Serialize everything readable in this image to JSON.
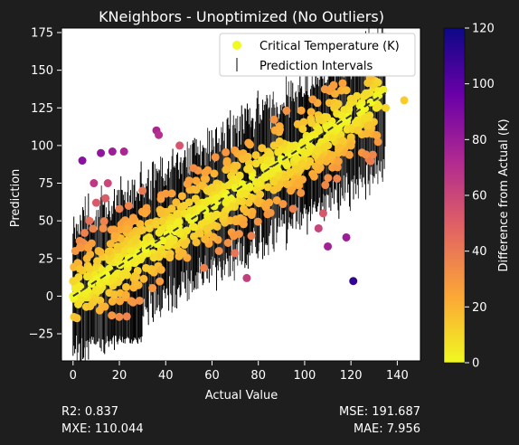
{
  "chart_data": {
    "type": "scatter",
    "title": "KNeighbors - Unoptimized (No Outliers)",
    "xlabel": "Actual Value",
    "ylabel": "Prediction",
    "xlim": [
      -5,
      150
    ],
    "ylim": [
      -43,
      178
    ],
    "xticks": [
      0,
      20,
      40,
      60,
      80,
      100,
      120,
      140
    ],
    "yticks": [
      -25,
      0,
      25,
      50,
      75,
      100,
      125,
      150,
      175
    ],
    "grid": false,
    "legend_position": "top-right",
    "legend": [
      {
        "label": "Critical Temperature (K)",
        "marker": "point",
        "color": "#f0f921"
      },
      {
        "label": "Prediction Intervals",
        "marker": "errorbar",
        "color": "#808080"
      }
    ],
    "reference_line": {
      "from": [
        0,
        0
      ],
      "to": [
        135,
        135
      ],
      "style": "dashed",
      "color": "#333333"
    },
    "colorbar": {
      "label": "Difference from Actual (K)",
      "range": [
        0,
        120
      ],
      "ticks": [
        0,
        20,
        40,
        60,
        80,
        100,
        120
      ],
      "colormap": "plasma_r"
    },
    "series": [
      {
        "name": "Critical Temperature (K)",
        "x": [
          4,
          12,
          17,
          22,
          36,
          37,
          15,
          9,
          46,
          57,
          77,
          75,
          97,
          99,
          103,
          110,
          118,
          121,
          114,
          123,
          134,
          143,
          131,
          128,
          135,
          125,
          120,
          108,
          106,
          111,
          7,
          14,
          24,
          30,
          42,
          52,
          63,
          70,
          83,
          90,
          95,
          102,
          1,
          2,
          3,
          5,
          8,
          11,
          18,
          26,
          33,
          40,
          48,
          55,
          60,
          66,
          72,
          80,
          86,
          92,
          100,
          116,
          10,
          20,
          31,
          45,
          58,
          68,
          84,
          94,
          112,
          0,
          0,
          1,
          6,
          13,
          25,
          38,
          50,
          62,
          74,
          88,
          115,
          122,
          126
        ],
        "y": [
          90,
          95,
          96,
          96,
          110,
          107,
          75,
          75,
          100,
          82,
          40,
          12,
          75,
          88,
          115,
          33,
          39,
          10,
          78,
          110,
          137,
          130,
          125,
          120,
          125,
          125,
          100,
          55,
          45,
          92,
          50,
          65,
          60,
          70,
          45,
          85,
          30,
          72,
          60,
          90,
          58,
          104,
          5,
          22,
          18,
          42,
          35,
          30,
          40,
          52,
          45,
          68,
          60,
          58,
          72,
          62,
          80,
          75,
          82,
          88,
          95,
          120,
          62,
          58,
          55,
          48,
          70,
          65,
          90,
          70,
          105,
          0,
          10,
          30,
          25,
          45,
          30,
          55,
          52,
          65,
          68,
          85,
          98,
          115,
          118
        ],
        "diff": [
          86,
          83,
          79,
          74,
          74,
          70,
          60,
          66,
          54,
          25,
          37,
          63,
          22,
          11,
          12,
          77,
          79,
          111,
          36,
          13,
          3,
          13,
          6,
          8,
          10,
          0,
          20,
          53,
          61,
          19,
          43,
          51,
          36,
          40,
          3,
          33,
          33,
          2,
          23,
          0,
          37,
          2,
          4,
          20,
          15,
          37,
          27,
          19,
          22,
          26,
          12,
          28,
          12,
          3,
          12,
          4,
          8,
          5,
          4,
          4,
          5,
          4,
          52,
          38,
          24,
          3,
          12,
          3,
          6,
          24,
          7,
          0,
          10,
          29,
          19,
          32,
          5,
          17,
          2,
          3,
          6,
          3,
          17,
          7,
          8
        ]
      }
    ]
  },
  "metrics": {
    "r2": "R2: 0.837",
    "mxe": "MXE: 110.044",
    "mse": "MSE: 191.687",
    "mae": "MAE: 7.956"
  }
}
